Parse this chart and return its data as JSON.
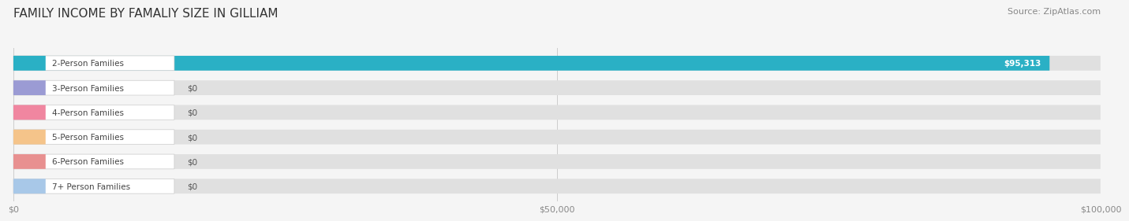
{
  "title": "FAMILY INCOME BY FAMALIY SIZE IN GILLIAM",
  "source": "Source: ZipAtlas.com",
  "categories": [
    "2-Person Families",
    "3-Person Families",
    "4-Person Families",
    "5-Person Families",
    "6-Person Families",
    "7+ Person Families"
  ],
  "values": [
    95313,
    0,
    0,
    0,
    0,
    0
  ],
  "bar_colors": [
    "#2ab0c5",
    "#9b9bd4",
    "#f086a0",
    "#f5c48a",
    "#e89090",
    "#a8c8e8"
  ],
  "label_bg_colors": [
    "#2ab0c5",
    "#9b9bd4",
    "#f086a0",
    "#f5c48a",
    "#e89090",
    "#a8c8e8"
  ],
  "xmax": 100000,
  "xticks": [
    0,
    50000,
    100000
  ],
  "xtick_labels": [
    "$0",
    "$50,000",
    "$100,000"
  ],
  "value_labels": [
    "$95,313",
    "$0",
    "$0",
    "$0",
    "$0",
    "$0"
  ],
  "background_color": "#f5f5f5",
  "bar_background_color": "#e0e0e0",
  "title_fontsize": 11,
  "source_fontsize": 8,
  "label_fontsize": 7.5,
  "value_fontsize": 7.5
}
